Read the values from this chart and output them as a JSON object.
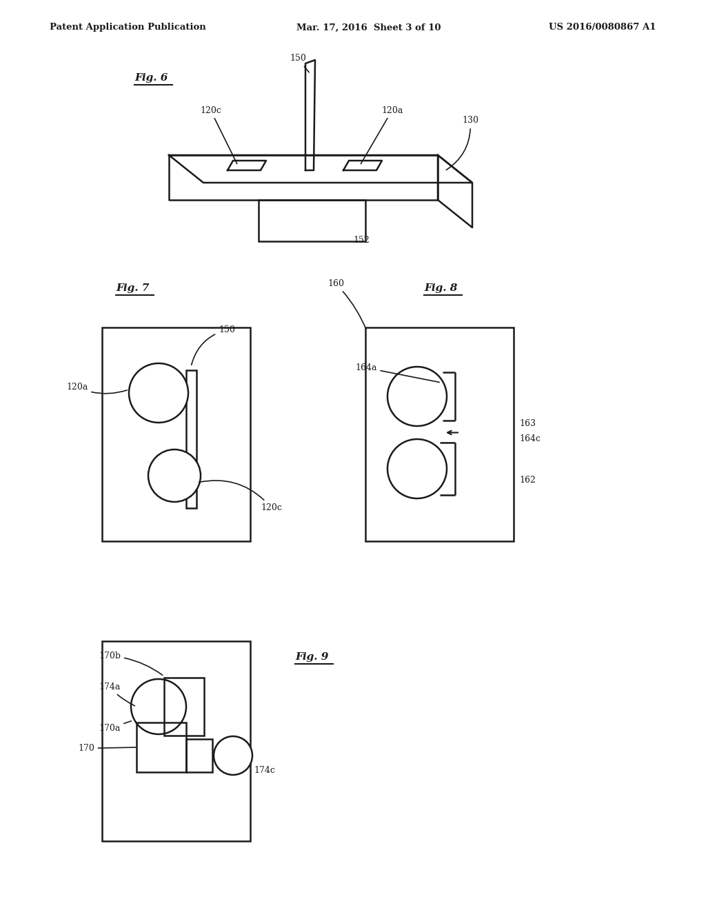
{
  "background_color": "#ffffff",
  "header_left": "Patent Application Publication",
  "header_mid": "Mar. 17, 2016  Sheet 3 of 10",
  "header_right": "US 2016/0080867 A1",
  "fig6_label": "Fig. 6",
  "fig7_label": "Fig. 7",
  "fig8_label": "Fig. 8",
  "fig9_label": "Fig. 9",
  "line_color": "#1a1a1a",
  "line_width": 1.8,
  "annotation_fontsize": 9,
  "figlabel_fontsize": 11
}
